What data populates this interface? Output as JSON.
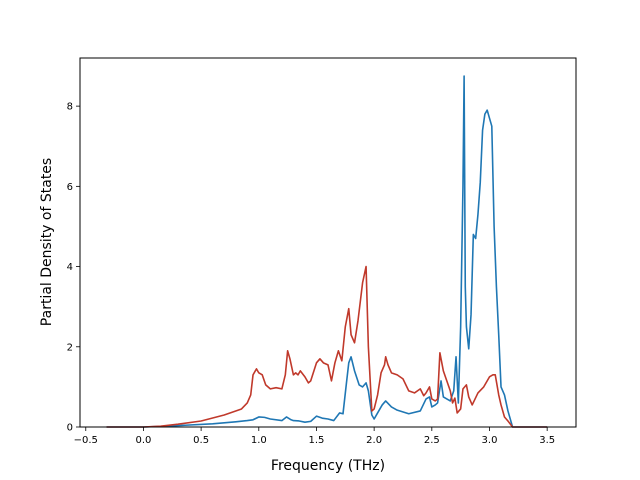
{
  "chart_data": {
    "type": "line",
    "title": "",
    "xlabel": "Frequency (THz)",
    "ylabel": "Partial Density of States",
    "xlim": [
      -0.55,
      3.75
    ],
    "ylim": [
      0,
      9.2
    ],
    "x_ticks": [
      -0.5,
      0.0,
      0.5,
      1.0,
      1.5,
      2.0,
      2.5,
      3.0,
      3.5
    ],
    "x_tick_labels": [
      "−0.5",
      "0.0",
      "0.5",
      "1.0",
      "1.5",
      "2.0",
      "2.5",
      "3.0",
      "3.5"
    ],
    "y_ticks": [
      0,
      2,
      4,
      6,
      8
    ],
    "y_tick_labels": [
      "0",
      "2",
      "4",
      "6",
      "8"
    ],
    "grid": false,
    "legend": "none",
    "series": [
      {
        "color": "#1f77b4",
        "x": [
          -0.32,
          0.0,
          0.2,
          0.4,
          0.6,
          0.8,
          0.9,
          0.95,
          1.0,
          1.05,
          1.1,
          1.2,
          1.24,
          1.28,
          1.3,
          1.35,
          1.4,
          1.45,
          1.5,
          1.55,
          1.6,
          1.65,
          1.7,
          1.73,
          1.76,
          1.78,
          1.8,
          1.83,
          1.87,
          1.9,
          1.93,
          1.95,
          1.98,
          2.0,
          2.03,
          2.07,
          2.1,
          2.15,
          2.2,
          2.3,
          2.4,
          2.45,
          2.48,
          2.5,
          2.53,
          2.55,
          2.58,
          2.6,
          2.63,
          2.66,
          2.69,
          2.71,
          2.73,
          2.75,
          2.77,
          2.78,
          2.79,
          2.8,
          2.82,
          2.84,
          2.86,
          2.88,
          2.9,
          2.92,
          2.94,
          2.96,
          2.98,
          3.0,
          3.02,
          3.04,
          3.06,
          3.08,
          3.1,
          3.13,
          3.16,
          3.2,
          3.5
        ],
        "y": [
          0.0,
          0.0,
          0.02,
          0.05,
          0.08,
          0.13,
          0.16,
          0.18,
          0.25,
          0.24,
          0.2,
          0.16,
          0.25,
          0.18,
          0.16,
          0.15,
          0.12,
          0.14,
          0.27,
          0.22,
          0.2,
          0.16,
          0.35,
          0.33,
          1.1,
          1.6,
          1.75,
          1.4,
          1.05,
          1.0,
          1.1,
          0.9,
          0.3,
          0.2,
          0.35,
          0.55,
          0.65,
          0.5,
          0.42,
          0.33,
          0.4,
          0.7,
          0.75,
          0.5,
          0.55,
          0.6,
          1.15,
          0.75,
          0.7,
          0.65,
          0.9,
          1.75,
          0.6,
          2.5,
          6.0,
          8.75,
          3.5,
          2.5,
          1.95,
          2.8,
          4.8,
          4.7,
          5.3,
          6.1,
          7.4,
          7.8,
          7.9,
          7.7,
          7.5,
          5.0,
          3.5,
          2.3,
          1.0,
          0.8,
          0.4,
          0.0,
          0.0
        ]
      },
      {
        "color": "#c0392b",
        "x": [
          -0.32,
          0.0,
          0.15,
          0.3,
          0.5,
          0.7,
          0.85,
          0.9,
          0.93,
          0.95,
          0.98,
          1.0,
          1.03,
          1.06,
          1.1,
          1.15,
          1.2,
          1.23,
          1.25,
          1.27,
          1.3,
          1.32,
          1.34,
          1.36,
          1.4,
          1.43,
          1.45,
          1.5,
          1.53,
          1.56,
          1.6,
          1.63,
          1.66,
          1.69,
          1.72,
          1.75,
          1.78,
          1.8,
          1.83,
          1.86,
          1.9,
          1.93,
          1.95,
          1.98,
          2.0,
          2.03,
          2.06,
          2.09,
          2.1,
          2.12,
          2.15,
          2.2,
          2.25,
          2.3,
          2.35,
          2.4,
          2.43,
          2.45,
          2.48,
          2.5,
          2.53,
          2.55,
          2.57,
          2.6,
          2.63,
          2.66,
          2.68,
          2.7,
          2.72,
          2.75,
          2.77,
          2.8,
          2.82,
          2.85,
          2.9,
          2.95,
          3.0,
          3.03,
          3.05,
          3.08,
          3.1,
          3.13,
          3.16,
          3.2,
          3.5
        ],
        "y": [
          0.0,
          0.0,
          0.02,
          0.07,
          0.15,
          0.3,
          0.45,
          0.6,
          0.8,
          1.3,
          1.45,
          1.35,
          1.3,
          1.05,
          0.95,
          0.98,
          0.95,
          1.3,
          1.9,
          1.7,
          1.3,
          1.35,
          1.3,
          1.4,
          1.25,
          1.1,
          1.15,
          1.6,
          1.7,
          1.6,
          1.55,
          1.15,
          1.6,
          1.9,
          1.65,
          2.5,
          2.95,
          2.3,
          2.1,
          2.65,
          3.6,
          4.0,
          2.0,
          0.4,
          0.45,
          0.8,
          1.35,
          1.55,
          1.75,
          1.55,
          1.35,
          1.3,
          1.2,
          0.9,
          0.85,
          0.95,
          0.78,
          0.85,
          1.0,
          0.7,
          0.65,
          0.7,
          1.85,
          1.4,
          1.15,
          0.9,
          0.6,
          0.72,
          0.35,
          0.45,
          0.95,
          1.05,
          0.75,
          0.55,
          0.85,
          1.0,
          1.25,
          1.3,
          1.3,
          0.8,
          0.55,
          0.25,
          0.15,
          0.0,
          0.0
        ]
      }
    ]
  }
}
